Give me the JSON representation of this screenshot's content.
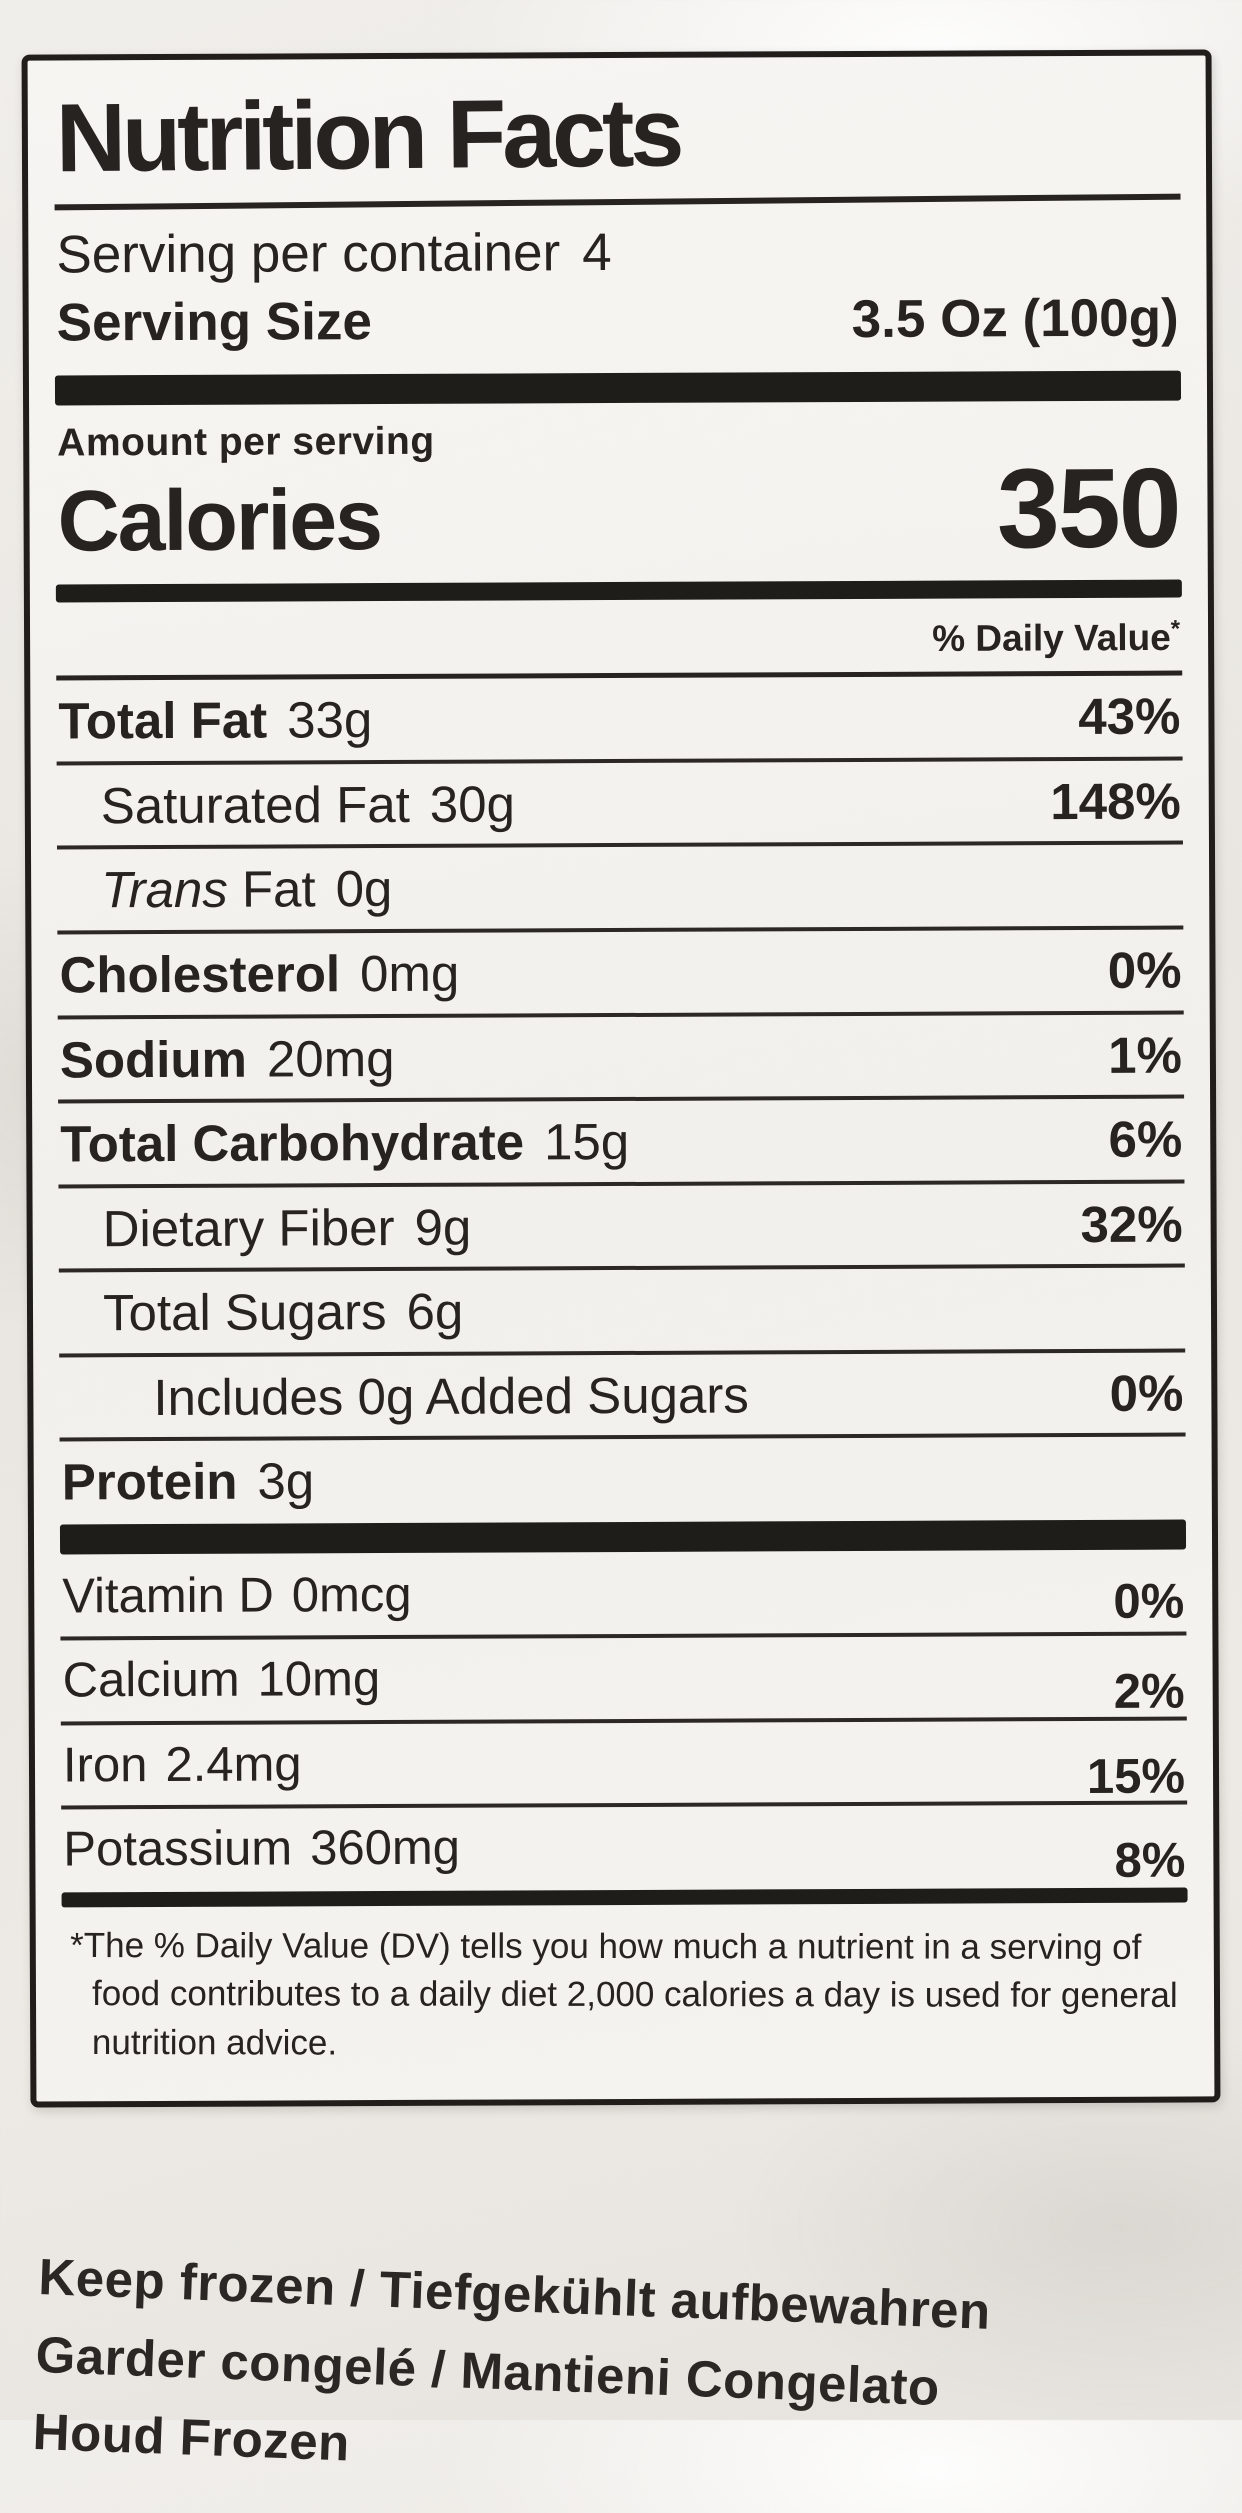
{
  "label": {
    "title": "Nutrition Facts",
    "serving_per_container_label": "Serving per container",
    "serving_per_container_value": "4",
    "serving_size_label": "Serving Size",
    "serving_size_value": "3.5 Oz (100g)",
    "amount_per_serving": "Amount per serving",
    "calories_label": "Calories",
    "calories_value": "350",
    "daily_value_header": "% Daily Value",
    "daily_value_asterisk": "*",
    "rows": [
      {
        "name": "Total Fat",
        "amount": "33g",
        "dv": "43%"
      },
      {
        "name": "Saturated Fat",
        "amount": "30g",
        "dv": "148%"
      },
      {
        "name_italic": "Trans",
        "name_rest": "Fat",
        "amount": "0g",
        "dv": ""
      },
      {
        "name": "Cholesterol",
        "amount": "0mg",
        "dv": "0%"
      },
      {
        "name": "Sodium",
        "amount": "20mg",
        "dv": "1%"
      },
      {
        "name": "Total Carbohydrate",
        "amount": "15g",
        "dv": "6%"
      },
      {
        "name": "Dietary Fiber",
        "amount": "9g",
        "dv": "32%"
      },
      {
        "name": "Total Sugars",
        "amount": "6g",
        "dv": ""
      },
      {
        "name": "Includes 0g Added Sugars",
        "amount": "",
        "dv": "0%"
      },
      {
        "name": "Protein",
        "amount": "3g",
        "dv": ""
      }
    ],
    "vitamins": [
      {
        "name": "Vitamin D",
        "amount": "0mcg",
        "dv": "0%"
      },
      {
        "name": "Calcium",
        "amount": "10mg",
        "dv": "2%"
      },
      {
        "name": "Iron",
        "amount": "2.4mg",
        "dv": "15%"
      },
      {
        "name": "Potassium",
        "amount": "360mg",
        "dv": "8%"
      }
    ],
    "footnote_marker": "*",
    "footnote_text": "The % Daily Value (DV) tells you how much a nutrient in a serving of food contributes to a daily diet 2,000 calories a day is used for general nutrition advice."
  },
  "storage": {
    "lines": [
      "Keep frozen / Tiefgekühlt aufbewahren",
      "Garder congelé / Mantieni Congelato",
      "Houd Frozen"
    ]
  },
  "colors": {
    "ink": "#262321",
    "label_background": "#f5f3ef",
    "package_background": "#e9e6e1"
  }
}
